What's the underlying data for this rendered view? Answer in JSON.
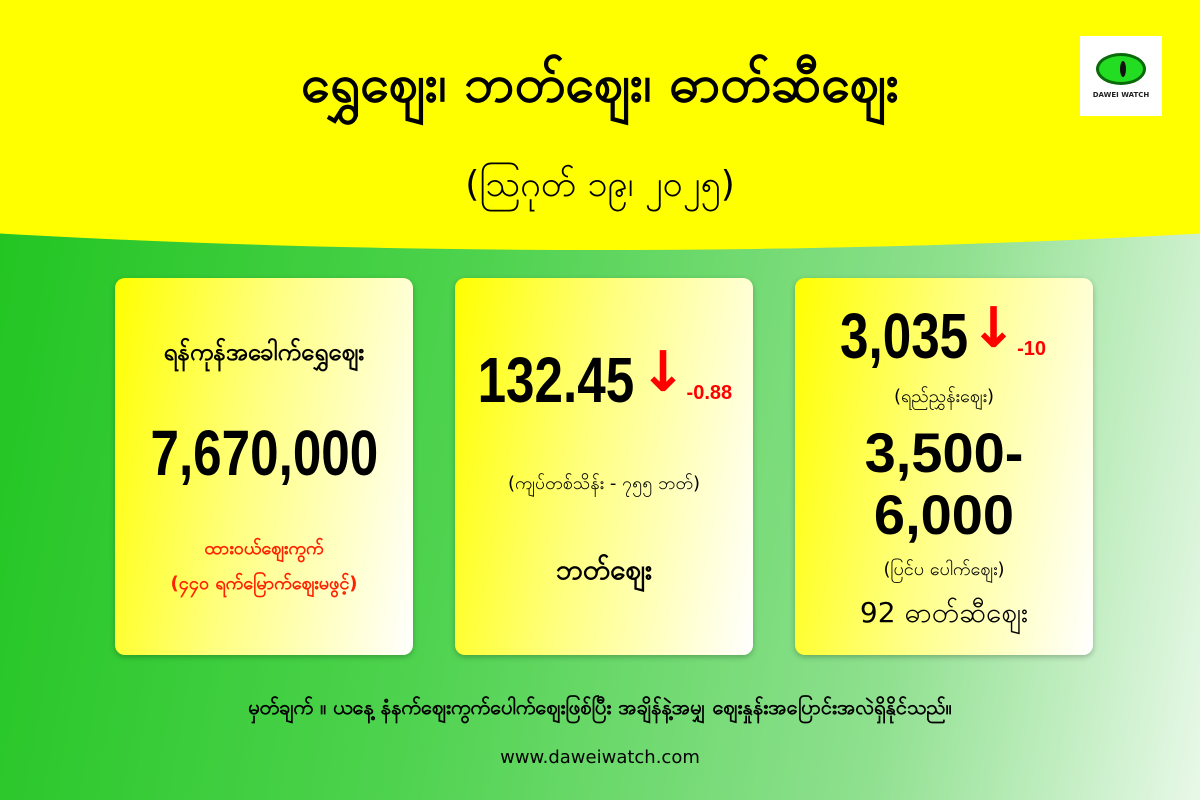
{
  "header": {
    "title": "ရွှေဈေး၊ ဘတ်ဈေး၊ ဓာတ်ဆီဈေး",
    "date": "(ဩဂုတ် ၁၉၊ ၂၀၂၅)",
    "logo_text": "DAWEI WATCH"
  },
  "gold": {
    "label": "ရန်ကုန်အခေါက်ရွှေဈေး",
    "price": "7,670,000",
    "market": "ထားဝယ်ဈေးကွက်",
    "note": "(၄၄၀ ရက်မြောက်ဈေးမဖွင့်)"
  },
  "baht": {
    "price": "132.45",
    "change": "-0.88",
    "trend": "down",
    "note": "(ကျပ်တစ်သိန်း - ၇၅၅ ဘတ်)",
    "label": "ဘတ်ဈေး"
  },
  "fuel": {
    "reference_price": "3,035",
    "change": "-10",
    "trend": "down",
    "reference_label": "(ရည်ညွှန်းဈေး)",
    "outside_price": "3,500-6,000",
    "outside_label": "(ပြင်ပ ပေါက်ဈေး)",
    "label": "92 ဓာတ်ဆီဈေး"
  },
  "footer": {
    "note": "မှတ်ချက် ။ ယနေ့ နံနက်ဈေးကွက်ပေါက်ဈေးဖြစ်ပြီး အချိန်နဲ့အမျှ ဈေးနှုန်းအပြောင်းအလဲရှိနိုင်သည်။",
    "url": "www.daweiwatch.com"
  },
  "colors": {
    "header": "#ffff00",
    "accent_red": "#ff0000",
    "background_green": "#1fc41f"
  }
}
